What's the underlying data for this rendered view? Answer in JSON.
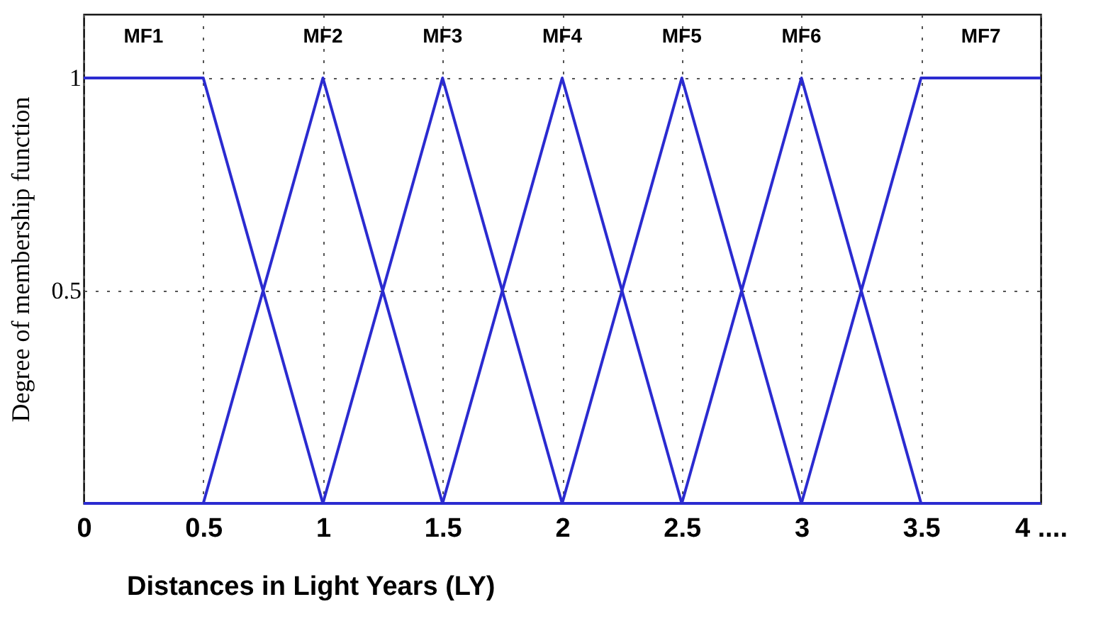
{
  "chart_data": {
    "type": "line",
    "xlabel": "Distances  in Light Years (LY)",
    "ylabel": "Degree of membership function",
    "series": [
      {
        "name": "MF1",
        "color": "#2b2bd0",
        "x": [
          0,
          0.5,
          1,
          4
        ],
        "values": [
          1,
          1,
          0,
          0
        ]
      },
      {
        "name": "MF2",
        "color": "#2b2bd0",
        "x": [
          0,
          0.5,
          1,
          1.5,
          4
        ],
        "values": [
          0,
          0,
          1,
          0,
          0
        ]
      },
      {
        "name": "MF3",
        "color": "#2b2bd0",
        "x": [
          0,
          1,
          1.5,
          2,
          4
        ],
        "values": [
          0,
          0,
          1,
          0,
          0
        ]
      },
      {
        "name": "MF4",
        "color": "#2b2bd0",
        "x": [
          0,
          1.5,
          2,
          2.5,
          4
        ],
        "values": [
          0,
          0,
          1,
          0,
          0
        ]
      },
      {
        "name": "MF5",
        "color": "#2b2bd0",
        "x": [
          0,
          2,
          2.5,
          3,
          4
        ],
        "values": [
          0,
          0,
          1,
          0,
          0
        ]
      },
      {
        "name": "MF6",
        "color": "#2b2bd0",
        "x": [
          0,
          2.5,
          3,
          3.5,
          4
        ],
        "values": [
          0,
          0,
          1,
          0,
          0
        ]
      },
      {
        "name": "MF7",
        "color": "#2b2bd0",
        "x": [
          0,
          3,
          3.5,
          4
        ],
        "values": [
          0,
          0,
          1,
          1
        ]
      }
    ],
    "xlim": [
      0,
      4
    ],
    "xticks": [
      0,
      0.5,
      1,
      1.5,
      2,
      2.5,
      3,
      3.5,
      {
        "value": 4,
        "label": "4 ...."
      }
    ],
    "ylim": [
      0,
      1.15
    ],
    "yticks": [
      {
        "value": 0,
        "label": null
      },
      0.5,
      1
    ],
    "grid": true,
    "legend": false,
    "marker": "none",
    "line_style": "solid"
  }
}
